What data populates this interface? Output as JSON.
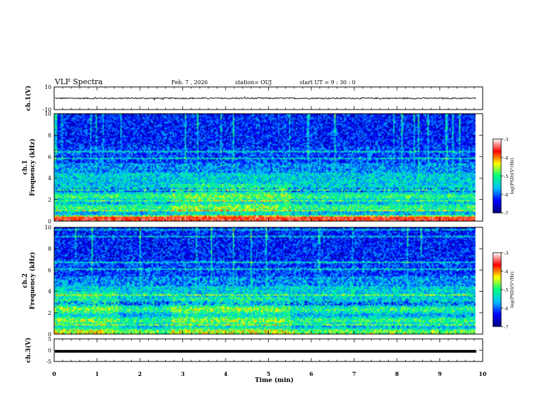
{
  "header": {
    "title": "VLF Spectra",
    "date": "Feb. 7 , 2026",
    "station": "station= OUJ",
    "start": "start  UT =   9 : 30 : 0"
  },
  "chart_data": [
    {
      "type": "line",
      "panel": "ch1-waveform",
      "ylabel": "ch.1(V)",
      "ylim": [
        -10,
        10
      ],
      "yticks": [
        10,
        -10
      ],
      "baseline_v": 0,
      "amplitude_v": 1.2,
      "xlim": [
        0,
        10
      ]
    },
    {
      "type": "heatmap",
      "panel": "ch1-spectrogram",
      "ylabel": "ch.1\nFrequency (kHz)",
      "ylim": [
        0,
        10
      ],
      "yticks": [
        0,
        2,
        4,
        6,
        8,
        10
      ],
      "xlim": [
        0,
        10
      ],
      "data_end_min": 9.85,
      "colorbar": {
        "label": "log(PSD)(V²/Hz)",
        "range": [
          -7,
          -3
        ],
        "ticks": [
          -3,
          -4,
          -5,
          -6,
          -7
        ]
      }
    },
    {
      "type": "heatmap",
      "panel": "ch2-spectrogram",
      "ylabel": "ch.2\nFrequency (kHz)",
      "ylim": [
        0,
        10
      ],
      "yticks": [
        0,
        2,
        4,
        6,
        8,
        10
      ],
      "xlim": [
        0,
        10
      ],
      "data_end_min": 9.85,
      "colorbar": {
        "label": "log(PSD)(V²/Hz)",
        "range": [
          -7,
          -3
        ],
        "ticks": [
          -3,
          -4,
          -5,
          -6,
          -7
        ]
      }
    },
    {
      "type": "line",
      "panel": "ch3-waveform",
      "ylabel": "ch.3(V)",
      "ylim": [
        -5,
        5
      ],
      "yticks": [
        5,
        0,
        -5
      ],
      "baseline_v": -0.5,
      "xlim": [
        0,
        10
      ]
    }
  ],
  "xaxis": {
    "label": "Time (min)",
    "ticks": [
      0,
      1,
      2,
      3,
      4,
      5,
      6,
      7,
      8,
      9,
      10
    ]
  },
  "colors": {
    "colormap": [
      "#000080",
      "#0000ff",
      "#00bfff",
      "#00ff80",
      "#ffff00",
      "#ff0000",
      "#ffffff"
    ]
  }
}
